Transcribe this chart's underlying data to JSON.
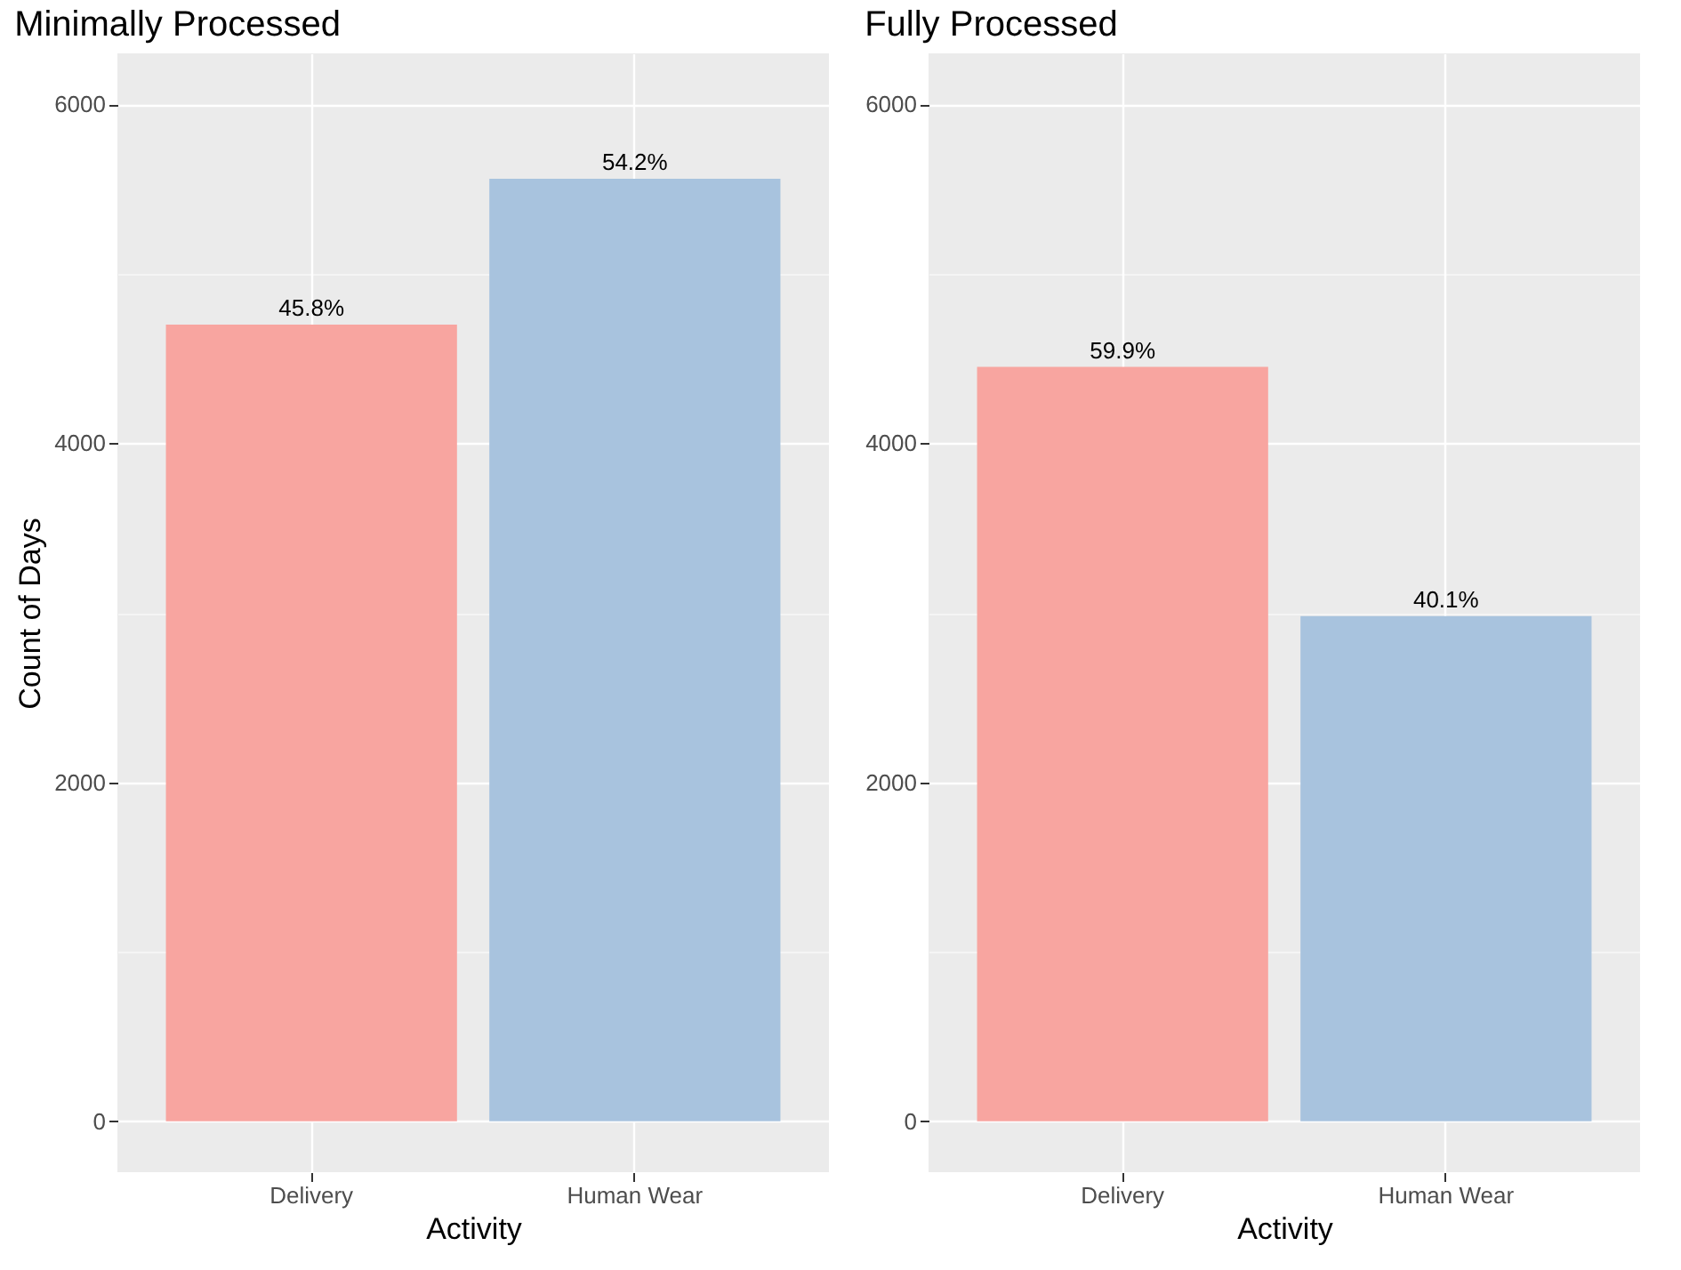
{
  "chart_data": [
    {
      "type": "bar",
      "title": "Minimally Processed",
      "xlabel": "Activity",
      "ylabel": "Count of Days",
      "categories": [
        "Delivery",
        "Human Wear"
      ],
      "values": [
        4700,
        5560
      ],
      "colors": [
        "#f8a5a0",
        "#a8c3de"
      ],
      "annotations": [
        {
          "text": "45.8%",
          "x": "Delivery",
          "y": 4700
        },
        {
          "text": "54.2%",
          "x": "Human Wear",
          "y": 5560
        }
      ],
      "ylim": [
        -300,
        6300
      ],
      "yticks": [
        0,
        {
          "value": 1000,
          "label": null
        },
        2000,
        {
          "value": 3000,
          "label": null
        },
        4000,
        {
          "value": 5000,
          "label": null
        },
        6000
      ],
      "grid": true
    },
    {
      "type": "bar",
      "title": "Fully Processed",
      "xlabel": "Activity",
      "categories": [
        "Delivery",
        "Human Wear"
      ],
      "values": [
        4450,
        2980
      ],
      "colors": [
        "#f8a5a0",
        "#a8c3de"
      ],
      "annotations": [
        {
          "text": "59.9%",
          "x": "Delivery",
          "y": 4450
        },
        {
          "text": "40.1%",
          "x": "Human Wear",
          "y": 2980
        }
      ],
      "ylim": [
        -300,
        6300
      ],
      "yticks": [
        0,
        {
          "value": 1000,
          "label": null
        },
        2000,
        {
          "value": 3000,
          "label": null
        },
        4000,
        {
          "value": 5000,
          "label": null
        },
        6000
      ],
      "grid": true
    }
  ]
}
